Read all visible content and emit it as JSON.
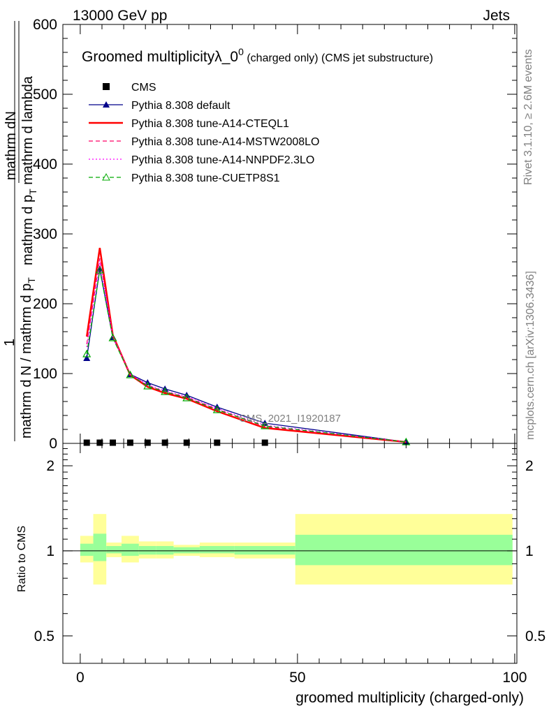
{
  "header": {
    "left": "13000 GeV pp",
    "right": "Jets"
  },
  "side_labels": {
    "rivet": "Rivet 3.1.10, ≥ 2.6M events",
    "mcplots": "mcplots.cern.ch [arXiv:1306.3436]"
  },
  "chart_data": [
    {
      "type": "line",
      "title": "Groomed multiplicityλ_0",
      "title_sup": "0",
      "title_suffix": " (charged only) (CMS jet substructure)",
      "analysis_tag": "CMS_2021_I1920187",
      "ylabel_top": "mathrm dN",
      "ylabel_mid": "mathrm d p",
      "ylabel_mid_sub": "T",
      "ylabel_mid_rest": " mathrm d lambda",
      "ylabel_one": "1",
      "ylabel_bottom": "mathrm d N / mathrm d p",
      "ylabel_bottom_sub": "T",
      "xlim": [
        -4,
        100.5
      ],
      "ylim": [
        0,
        600
      ],
      "y_ticks": [
        0,
        100,
        200,
        300,
        400,
        500,
        600
      ],
      "y_tick_labels": [
        "0",
        "100",
        "200",
        "300",
        "400",
        "500",
        "600"
      ],
      "legend_position": "top-left",
      "x": [
        1.5,
        4.5,
        7.5,
        11.5,
        15.5,
        19.5,
        24.5,
        31.5,
        42.5,
        75
      ],
      "series": [
        {
          "name": "CMS",
          "color": "#000000",
          "style": "marker",
          "marker": "square",
          "values": [
            0.5,
            0.5,
            0.5,
            0.5,
            0.5,
            0.5,
            0.5,
            0.5,
            0.5,
            null
          ]
        },
        {
          "name": "Pythia 8.308 default",
          "color": "#00008b",
          "style": "solid",
          "marker": "triangle",
          "values": [
            122,
            250,
            152,
            99,
            87,
            78,
            69,
            52,
            29,
            2
          ]
        },
        {
          "name": "Pythia 8.308 tune-A14-CTEQL1",
          "color": "#ff0000",
          "style": "thick",
          "marker": "none",
          "values": [
            153,
            280,
            155,
            98,
            81,
            72,
            64,
            46,
            22,
            2
          ]
        },
        {
          "name": "Pythia 8.308 tune-A14-MSTW2008LO",
          "color": "#ff0066",
          "style": "dashed",
          "marker": "none",
          "values": [
            142,
            265,
            154,
            99,
            83,
            74,
            66,
            49,
            24,
            2
          ]
        },
        {
          "name": "Pythia 8.308 tune-A14-NNPDF2.3LO",
          "color": "#ff00ff",
          "style": "dotted",
          "marker": "none",
          "values": [
            138,
            262,
            153,
            99,
            84,
            75,
            67,
            50,
            26,
            2
          ]
        },
        {
          "name": "Pythia 8.308 tune-CUETP8S1",
          "color": "#00aa00",
          "style": "dashed",
          "marker": "open-triangle",
          "values": [
            128,
            248,
            151,
            98,
            82,
            74,
            65,
            48,
            25,
            2
          ]
        }
      ]
    },
    {
      "type": "area",
      "ylabel": "Ratio to CMS",
      "xlabel": "groomed multiplicity (charged-only)",
      "xlim": [
        -4,
        100.5
      ],
      "ylim": [
        0.4,
        2.4
      ],
      "log_y": true,
      "y_ticks": [
        0.5,
        1,
        2
      ],
      "y_tick_labels": [
        "0.5",
        "1",
        "2"
      ],
      "x_ticks": [
        0,
        50,
        100
      ],
      "x_tick_labels": [
        "0",
        "50",
        "100"
      ],
      "bins": [
        {
          "lo": 0,
          "hi": 3,
          "inner": [
            0.96,
            1.06
          ],
          "outer": [
            0.91,
            1.13
          ]
        },
        {
          "lo": 3,
          "hi": 6,
          "inner": [
            0.92,
            1.15
          ],
          "outer": [
            0.76,
            1.35
          ]
        },
        {
          "lo": 6,
          "hi": 9.5,
          "inner": [
            0.98,
            1.04
          ],
          "outer": [
            0.95,
            1.07
          ]
        },
        {
          "lo": 9.5,
          "hi": 13.5,
          "inner": [
            0.96,
            1.06
          ],
          "outer": [
            0.91,
            1.13
          ]
        },
        {
          "lo": 13.5,
          "hi": 17.5,
          "inner": [
            0.97,
            1.04
          ],
          "outer": [
            0.94,
            1.08
          ]
        },
        {
          "lo": 17.5,
          "hi": 21.5,
          "inner": [
            0.97,
            1.04
          ],
          "outer": [
            0.94,
            1.08
          ]
        },
        {
          "lo": 21.5,
          "hi": 27.5,
          "inner": [
            0.98,
            1.03
          ],
          "outer": [
            0.96,
            1.05
          ]
        },
        {
          "lo": 27.5,
          "hi": 35.5,
          "inner": [
            0.98,
            1.04
          ],
          "outer": [
            0.95,
            1.07
          ]
        },
        {
          "lo": 35.5,
          "hi": 49.5,
          "inner": [
            0.97,
            1.04
          ],
          "outer": [
            0.94,
            1.07
          ]
        },
        {
          "lo": 49.5,
          "hi": 99.5,
          "inner": [
            0.89,
            1.14
          ],
          "outer": [
            0.76,
            1.35
          ]
        }
      ],
      "band_colors": {
        "inner": "#99ff99",
        "outer": "#ffff99"
      }
    }
  ]
}
